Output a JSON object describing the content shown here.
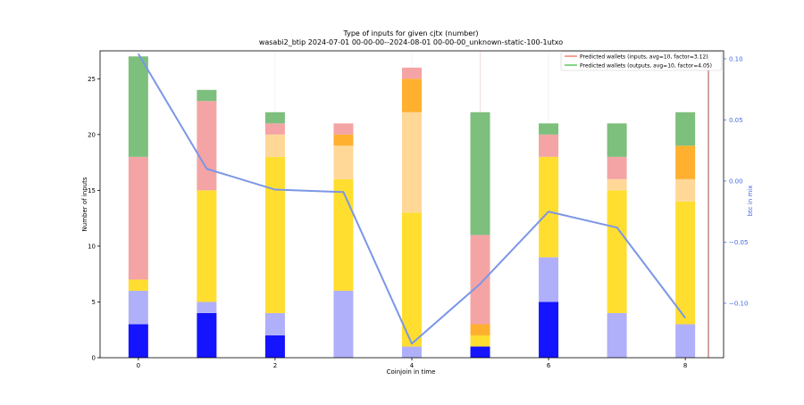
{
  "chart_data": {
    "type": "bar",
    "title": "Type of inputs for given cjtx (number)",
    "subtitle": "wasabi2_btip 2024-07-01 00-00-00--2024-08-01 00-00-00_unknown-static-100-1utxo",
    "xlabel": "Coinjoin in time",
    "ylabel": "Number of inputs",
    "y2label": "btc in mix",
    "x_ticks": [
      "0",
      "2",
      "4",
      "6",
      "8"
    ],
    "y_ticks": [
      "0",
      "5",
      "10",
      "15",
      "20",
      "25"
    ],
    "y2_ticks": [
      "−0.10",
      "−0.05",
      "0.00",
      "0.05",
      "0.10"
    ],
    "ylim": [
      0,
      27.5
    ],
    "y2lim": [
      -0.1445,
      0.1065
    ],
    "legend": {
      "position": "top-right",
      "entries": [
        {
          "label": "Predicted wallets (inputs, avg=10, factor=3.12)",
          "color": "#f08070"
        },
        {
          "label": "Predicted wallets (outputs, avg=10, factor=4.05)",
          "color": "#5cc85c"
        }
      ]
    },
    "categories": [
      0,
      1,
      2,
      3,
      4,
      5,
      6,
      7,
      8
    ],
    "stack_colors": [
      "#1414ff",
      "#b0b0fa",
      "#ffde30",
      "#ffd898",
      "#ffb02e",
      "#f4a4a4",
      "#7dbf7d"
    ],
    "segments": [
      [
        [
          3,
          "#1414ff"
        ],
        [
          3,
          "#b0b0fa"
        ],
        [
          1,
          "#ffde30"
        ],
        [
          11,
          "#f4a4a4"
        ],
        [
          9,
          "#7dbf7d"
        ]
      ],
      [
        [
          4,
          "#1414ff"
        ],
        [
          1,
          "#b0b0fa"
        ],
        [
          10,
          "#ffde30"
        ],
        [
          8,
          "#f4a4a4"
        ],
        [
          1,
          "#7dbf7d"
        ]
      ],
      [
        [
          2,
          "#1414ff"
        ],
        [
          2,
          "#b0b0fa"
        ],
        [
          14,
          "#ffde30"
        ],
        [
          2,
          "#ffd898"
        ],
        [
          1,
          "#f4a4a4"
        ],
        [
          1,
          "#7dbf7d"
        ]
      ],
      [
        [
          6,
          "#b0b0fa"
        ],
        [
          10,
          "#ffde30"
        ],
        [
          3,
          "#ffd898"
        ],
        [
          1,
          "#ffb02e"
        ],
        [
          1,
          "#f4a4a4"
        ]
      ],
      [
        [
          1,
          "#b0b0fa"
        ],
        [
          12,
          "#ffde30"
        ],
        [
          9,
          "#ffd898"
        ],
        [
          3,
          "#ffb02e"
        ],
        [
          1,
          "#f4a4a4"
        ]
      ],
      [
        [
          1,
          "#1414ff"
        ],
        [
          1,
          "#ffde30"
        ],
        [
          1,
          "#ffb02e"
        ],
        [
          8,
          "#f4a4a4"
        ],
        [
          11,
          "#7dbf7d"
        ]
      ],
      [
        [
          5,
          "#1414ff"
        ],
        [
          4,
          "#b0b0fa"
        ],
        [
          9,
          "#ffde30"
        ],
        [
          2,
          "#f4a4a4"
        ],
        [
          1,
          "#7dbf7d"
        ]
      ],
      [
        [
          4,
          "#b0b0fa"
        ],
        [
          11,
          "#ffde30"
        ],
        [
          1,
          "#ffd898"
        ],
        [
          2,
          "#f4a4a4"
        ],
        [
          3,
          "#7dbf7d"
        ]
      ],
      [
        [
          3,
          "#b0b0fa"
        ],
        [
          11,
          "#ffde30"
        ],
        [
          2,
          "#ffd898"
        ],
        [
          3,
          "#ffb02e"
        ],
        [
          3,
          "#7dbf7d"
        ]
      ]
    ],
    "btc_line": {
      "color": "#7b96e6",
      "values": [
        0.104,
        0.01,
        -0.007,
        -0.009,
        -0.133,
        -0.084,
        -0.025,
        -0.038,
        -0.112
      ]
    },
    "grid": "vertical, faint"
  }
}
